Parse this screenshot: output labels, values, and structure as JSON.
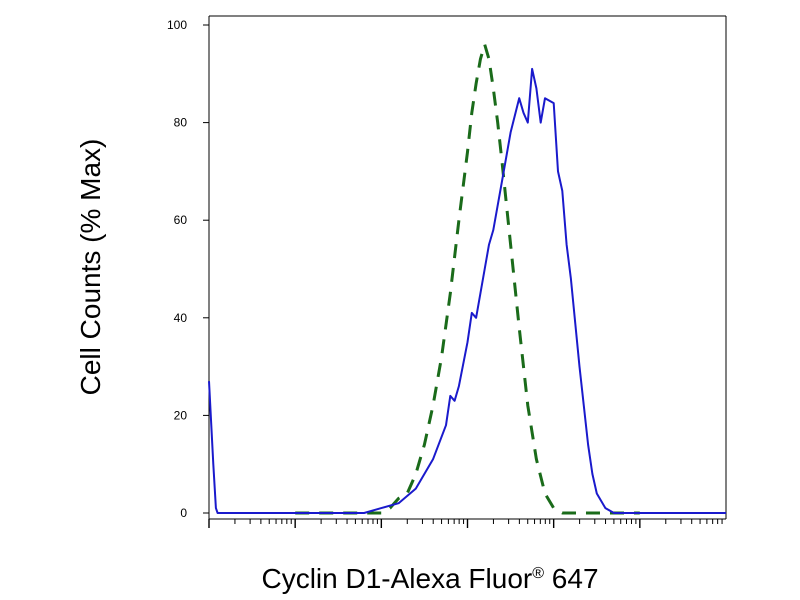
{
  "chart_data": {
    "type": "line",
    "title": "",
    "xlabel": "Cyclin D1-Alexa Fluor",
    "xlabel_mark": "®",
    "xlabel_suffix": " 647",
    "ylabel": "Cell Counts (% Max)",
    "xscale": "log",
    "ylim": [
      0,
      100
    ],
    "y_ticks": [
      0,
      20,
      40,
      60,
      80,
      100
    ],
    "grid": false,
    "legend": "none",
    "series": [
      {
        "style": "dashed",
        "color": "#1a6b1a",
        "x": [
          1.0,
          1.5,
          1.7,
          1.9,
          2.0,
          2.1,
          2.2,
          2.3,
          2.4,
          2.5,
          2.6,
          2.7,
          2.8,
          2.9,
          3.0,
          3.05,
          3.1,
          3.15,
          3.2,
          3.25,
          3.3,
          3.35,
          3.4,
          3.5,
          3.6,
          3.7,
          3.8,
          3.9,
          4.0,
          4.1,
          4.2,
          4.3,
          4.5,
          5.0
        ],
        "y": [
          0,
          0,
          0,
          0,
          0,
          1,
          3,
          4,
          8,
          14,
          22,
          32,
          45,
          60,
          74,
          82,
          88,
          93,
          96,
          93,
          87,
          80,
          72,
          55,
          38,
          22,
          11,
          4,
          1,
          0,
          0,
          0,
          0,
          0
        ]
      },
      {
        "style": "solid",
        "color": "#1a1acc",
        "x": [
          0.0,
          0.05,
          0.08,
          0.1,
          0.15,
          0.5,
          1.0,
          1.5,
          1.8,
          2.0,
          2.2,
          2.4,
          2.6,
          2.75,
          2.8,
          2.85,
          2.9,
          3.0,
          3.05,
          3.1,
          3.2,
          3.25,
          3.3,
          3.4,
          3.5,
          3.6,
          3.65,
          3.7,
          3.75,
          3.8,
          3.85,
          3.9,
          4.0,
          4.05,
          4.1,
          4.15,
          4.2,
          4.3,
          4.35,
          4.4,
          4.45,
          4.5,
          4.6,
          4.7,
          4.8,
          5.0,
          5.2,
          5.5,
          6.0
        ],
        "y": [
          27,
          10,
          1,
          0,
          0,
          0,
          0,
          0,
          0,
          1,
          2,
          5,
          11,
          18,
          24,
          23,
          26,
          35,
          41,
          40,
          50,
          55,
          58,
          68,
          78,
          85,
          82,
          80,
          91,
          87,
          80,
          85,
          84,
          70,
          66,
          55,
          48,
          30,
          22,
          14,
          8,
          4,
          1,
          0,
          0,
          0,
          0,
          0,
          0
        ]
      }
    ]
  }
}
